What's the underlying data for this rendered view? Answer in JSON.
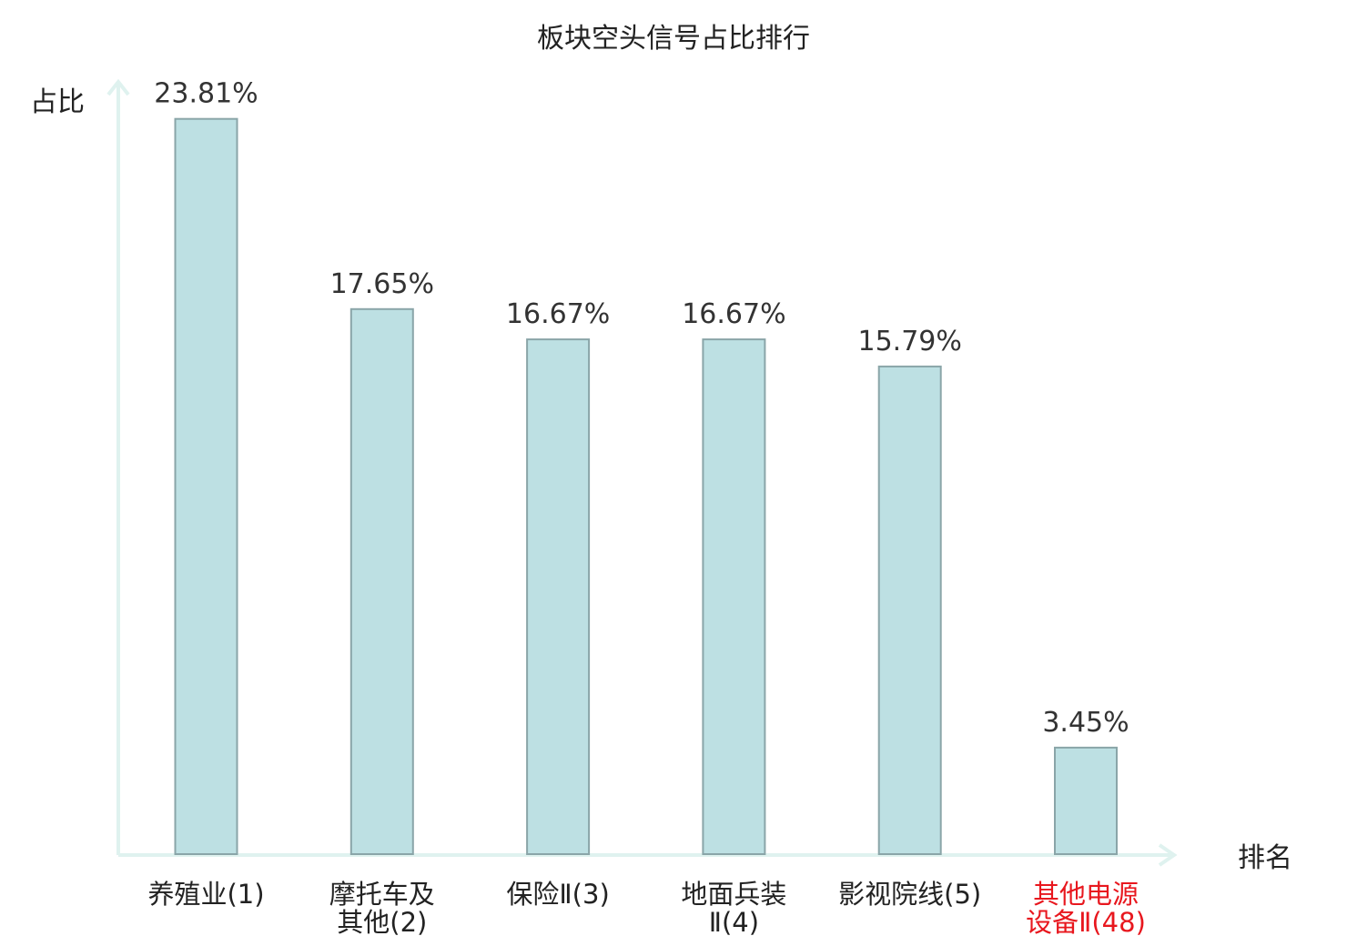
{
  "chart_data": {
    "type": "bar",
    "title": "板块空头信号占比排行",
    "ylabel": "占比",
    "xlabel": "排名",
    "categories": [
      [
        "养殖业(1)"
      ],
      [
        "摩托车及",
        "其他(2)"
      ],
      [
        "保险Ⅱ(3)"
      ],
      [
        "地面兵装",
        "Ⅱ(4)"
      ],
      [
        "影视院线(5)"
      ],
      [
        "其他电源",
        "设备Ⅱ(48)"
      ]
    ],
    "values": [
      23.81,
      17.65,
      16.67,
      16.67,
      15.79,
      3.45
    ],
    "value_labels": [
      "23.81%",
      "17.65%",
      "16.67%",
      "16.67%",
      "15.79%",
      "3.45%"
    ],
    "highlight_index": 5,
    "ylim": [
      0,
      24.65
    ],
    "grid": false,
    "colors": {
      "bar_fill": "#bde0e3",
      "bar_stroke": "#8aa5a8",
      "axis": "#dff2ef",
      "highlight_text": "#e8171e",
      "text": "#222222"
    }
  }
}
